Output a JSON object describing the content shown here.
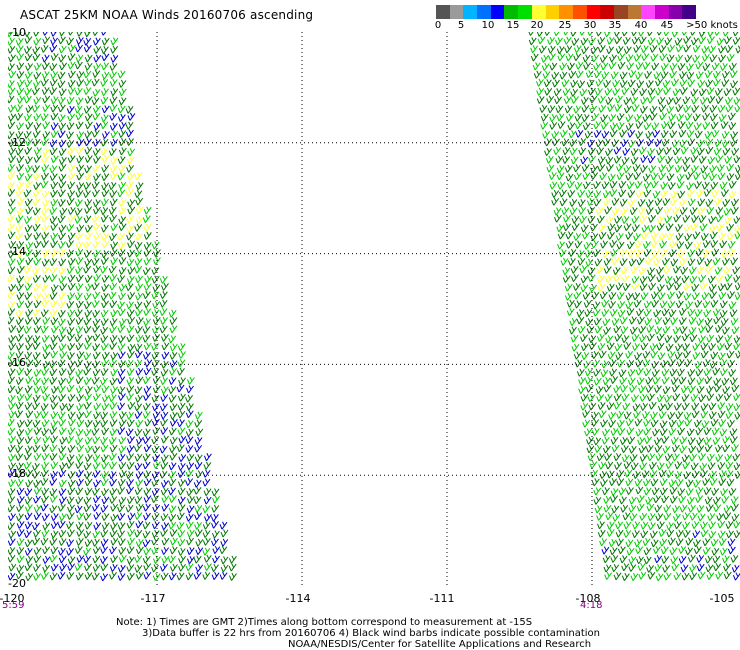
{
  "title": "ASCAT 25KM NOAA Winds 20160706 ascending",
  "colorbar": {
    "colors": [
      "#555555",
      "#9a9a9a",
      "#00b4ff",
      "#0070ff",
      "#0000ff",
      "#00bb00",
      "#00e000",
      "#ffff33",
      "#ffd000",
      "#ff9000",
      "#ff5000",
      "#ff0000",
      "#cc0000",
      "#994422",
      "#bb7733",
      "#ff44ff",
      "#cc00cc",
      "#8800aa",
      "#440088"
    ],
    "labels": [
      "0",
      "5",
      "10",
      "15",
      "20",
      "25",
      "30",
      "35",
      "40",
      "45",
      ">50 knots"
    ]
  },
  "map": {
    "lat_ticks": [
      "-10",
      "-12",
      "-14",
      "-16",
      "-18",
      "-20"
    ],
    "lon_ticks": [
      "-120",
      "-117",
      "-114",
      "-111",
      "-108",
      "-105"
    ],
    "lat_range": [
      -20,
      -10
    ],
    "lon_range": [
      -120,
      -105
    ],
    "grid": "dotted",
    "wind_colors": {
      "slow": "#0000cc",
      "moderate": "#00cc00",
      "fresh": "#007700",
      "strong": "#ffff33"
    }
  },
  "times": {
    "left": "5:59",
    "right": "4:18"
  },
  "notes": {
    "line1": "Note: 1) Times are GMT 2)Times along bottom correspond to measurement at -15S",
    "line2": "3)Data buffer is 22 hrs from 20160706 4) Black wind barbs indicate possible contamination",
    "line3": "NOAA/NESDIS/Center for Satellite Applications and Research"
  }
}
